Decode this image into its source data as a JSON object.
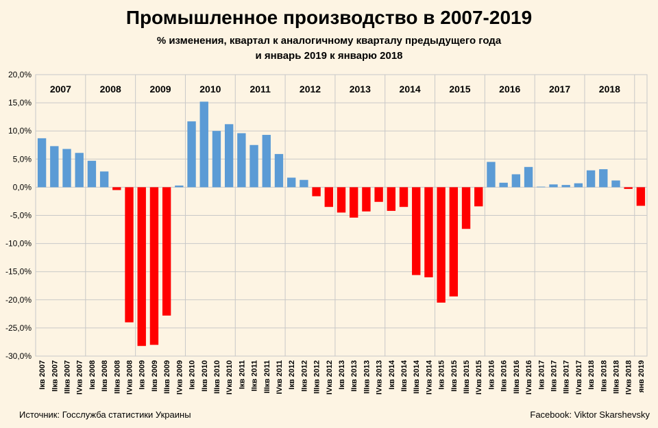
{
  "title": "Промышленное производство в 2007-2019",
  "subtitle_line1": "% изменения, квартал  к аналогичному кварталу предыдущего года",
  "subtitle_line2": "и январь 2019 к январю 2018",
  "source": "Источник: Госслужба статистики Украины",
  "credit": "Facebook: Viktor Skarshevsky",
  "colors": {
    "positive": "#5b9bd5",
    "negative": "#ff0000",
    "background": "#fdf4e3",
    "grid": "#c8c8c8"
  },
  "chart_data": {
    "type": "bar",
    "ylim": [
      -30,
      20
    ],
    "yticks": [
      "20,0%",
      "15,0%",
      "10,0%",
      "5,0%",
      "0,0%",
      "-5,0%",
      "-10,0%",
      "-15,0%",
      "-20,0%",
      "-25,0%",
      "-30,0%"
    ],
    "ytick_values": [
      20,
      15,
      10,
      5,
      0,
      -5,
      -10,
      -15,
      -20,
      -25,
      -30
    ],
    "grid": "horizontal",
    "year_labels": [
      "2007",
      "2008",
      "2009",
      "2010",
      "2011",
      "2012",
      "2013",
      "2014",
      "2015",
      "2016",
      "2017",
      "2018"
    ],
    "categories": [
      "Iкв 2007",
      "IIкв 2007",
      "IIIкв 2007",
      "IVкв 2007",
      "Iкв 2008",
      "IIкв 2008",
      "IIIкв 2008",
      "IVкв 2008",
      "Iкв 2009",
      "IIкв 2009",
      "IIIкв 2009",
      "IVкв 2009",
      "Iкв 2010",
      "IIкв 2010",
      "IIIкв 2010",
      "IVкв 2010",
      "Iкв 2011",
      "IIкв 2011",
      "IIIкв 2011",
      "IVкв 2011",
      "Iкв 2012",
      "IIкв 2012",
      "IIIкв 2012",
      "IVкв 2012",
      "Iкв 2013",
      "IIкв 2013",
      "IIIкв 2013",
      "IVкв 2013",
      "Iкв 2014",
      "IIкв 2014",
      "IIIкв 2014",
      "IVкв 2014",
      "Iкв 2015",
      "IIкв 2015",
      "IIIкв 2015",
      "IVкв 2015",
      "Iкв 2016",
      "IIкв 2016",
      "IIIкв 2016",
      "IVкв 2016",
      "Iкв 2017",
      "IIкв 2017",
      "IIIкв 2017",
      "IVкв 2017",
      "Iкв 2018",
      "IIкв 2018",
      "IIIкв 2018",
      "IVкв 2018",
      "янв 2019"
    ],
    "values": [
      8.7,
      7.3,
      6.8,
      6.1,
      4.7,
      2.8,
      -0.5,
      -24.0,
      -28.2,
      -28.0,
      -22.8,
      0.3,
      11.7,
      15.2,
      10.0,
      11.2,
      9.6,
      7.5,
      9.3,
      5.9,
      1.7,
      1.3,
      -1.6,
      -3.5,
      -4.5,
      -5.4,
      -4.3,
      -2.6,
      -4.2,
      -3.5,
      -15.6,
      -16.0,
      -20.5,
      -19.4,
      -7.4,
      -3.4,
      4.5,
      0.8,
      2.3,
      3.6,
      0.1,
      0.5,
      0.4,
      0.7,
      3.0,
      3.2,
      1.2,
      -0.3,
      -3.3
    ]
  }
}
